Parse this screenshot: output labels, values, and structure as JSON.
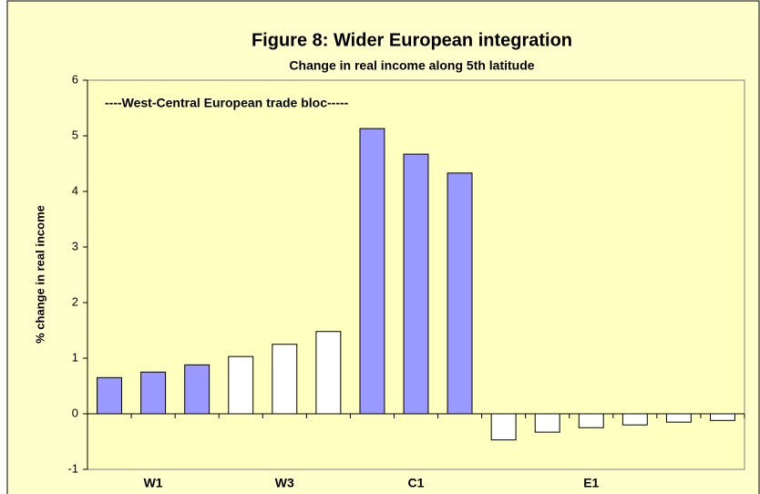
{
  "chart_data": {
    "type": "bar",
    "title": "Figure 8: Wider European integration",
    "subtitle": "Change in real income along 5th latitude",
    "y_label": "% change in real income",
    "annotation": "----West-Central European trade bloc-----",
    "categories": [
      null,
      "W1",
      null,
      null,
      "W3",
      null,
      null,
      "C1",
      null,
      null,
      null,
      "E1",
      null,
      null,
      null
    ],
    "values": [
      0.65,
      0.75,
      0.88,
      1.03,
      1.25,
      1.48,
      5.13,
      4.67,
      4.33,
      -0.47,
      -0.33,
      -0.25,
      -0.2,
      -0.15,
      -0.12
    ],
    "colors": [
      "#9999ff",
      "#9999ff",
      "#9999ff",
      "#ffffff",
      "#ffffff",
      "#ffffff",
      "#9999ff",
      "#9999ff",
      "#9999ff",
      "#ffffff",
      "#ffffff",
      "#ffffff",
      "#ffffff",
      "#ffffff",
      "#ffffff"
    ],
    "ylim": [
      -1,
      6
    ],
    "yticks": [
      -1,
      0,
      1,
      2,
      3,
      4,
      5,
      6
    ],
    "grid": false
  }
}
